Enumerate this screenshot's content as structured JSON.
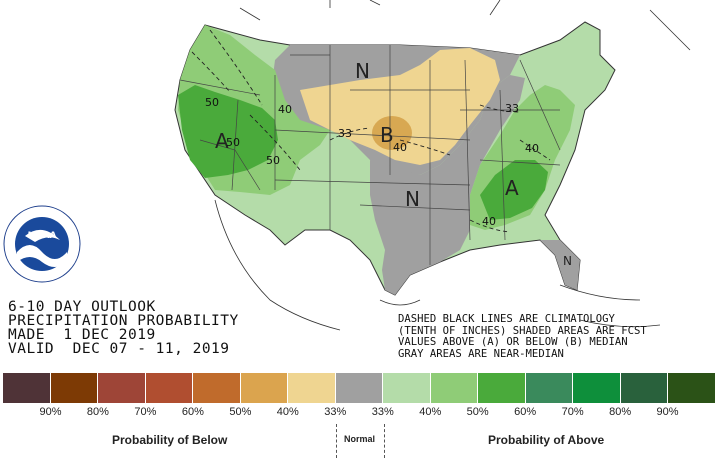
{
  "map": {
    "labels": {
      "n_north": "N",
      "b_midwest": "B",
      "a_west": "A",
      "n_south": "N",
      "a_east": "A",
      "n_florida": "N"
    },
    "contours": {
      "c50_nw": "50",
      "c40_idaho": "40",
      "c50_nv": "50",
      "c50_ut": "50",
      "c33_ne": "33",
      "c40_ia": "40",
      "c33_ohio": "33",
      "c40_va": "40",
      "c40_ga": "40"
    },
    "colors": {
      "normal": "#a0a0a0",
      "below33": "#efd591",
      "below40": "#d8a852",
      "above33": "#b4dca9",
      "above40": "#8fcc77",
      "above50": "#4aaa3b"
    }
  },
  "logo": {
    "name": "NOAA",
    "ring_text": "NATIONAL OCEANIC AND ATMOSPHERIC ADMINISTRATION",
    "ring_text_bottom": "U.S. DEPARTMENT OF COMMERCE"
  },
  "title": {
    "line1": "6-10 DAY OUTLOOK",
    "line2": "PRECIPITATION PROBABILITY",
    "line3": "MADE  1 DEC 2019",
    "line4": "VALID  DEC 07 - 11, 2019"
  },
  "note": {
    "line1": "DASHED BLACK LINES ARE CLIMATOLOGY",
    "line2": "(TENTH OF INCHES) SHADED AREAS ARE FCST",
    "line3": "VALUES ABOVE (A) OR BELOW (B) MEDIAN",
    "line4": "GRAY AREAS ARE NEAR-MEDIAN"
  },
  "legend": {
    "colors": [
      "#4f3337",
      "#7d3a05",
      "#9e4537",
      "#b04e30",
      "#c06b2c",
      "#dba44e",
      "#efd591",
      "#a0a0a0",
      "#b4dca9",
      "#8fcc77",
      "#4aaa3b",
      "#3a8a5c",
      "#0e8f3b",
      "#29613c",
      "#2b5217"
    ],
    "labels": [
      "90%",
      "80%",
      "70%",
      "60%",
      "50%",
      "40%",
      "33%",
      "33%",
      "40%",
      "50%",
      "60%",
      "70%",
      "80%",
      "90%"
    ],
    "below_title": "Probability of Below",
    "normal_title": "Normal",
    "above_title": "Probability of Above"
  }
}
